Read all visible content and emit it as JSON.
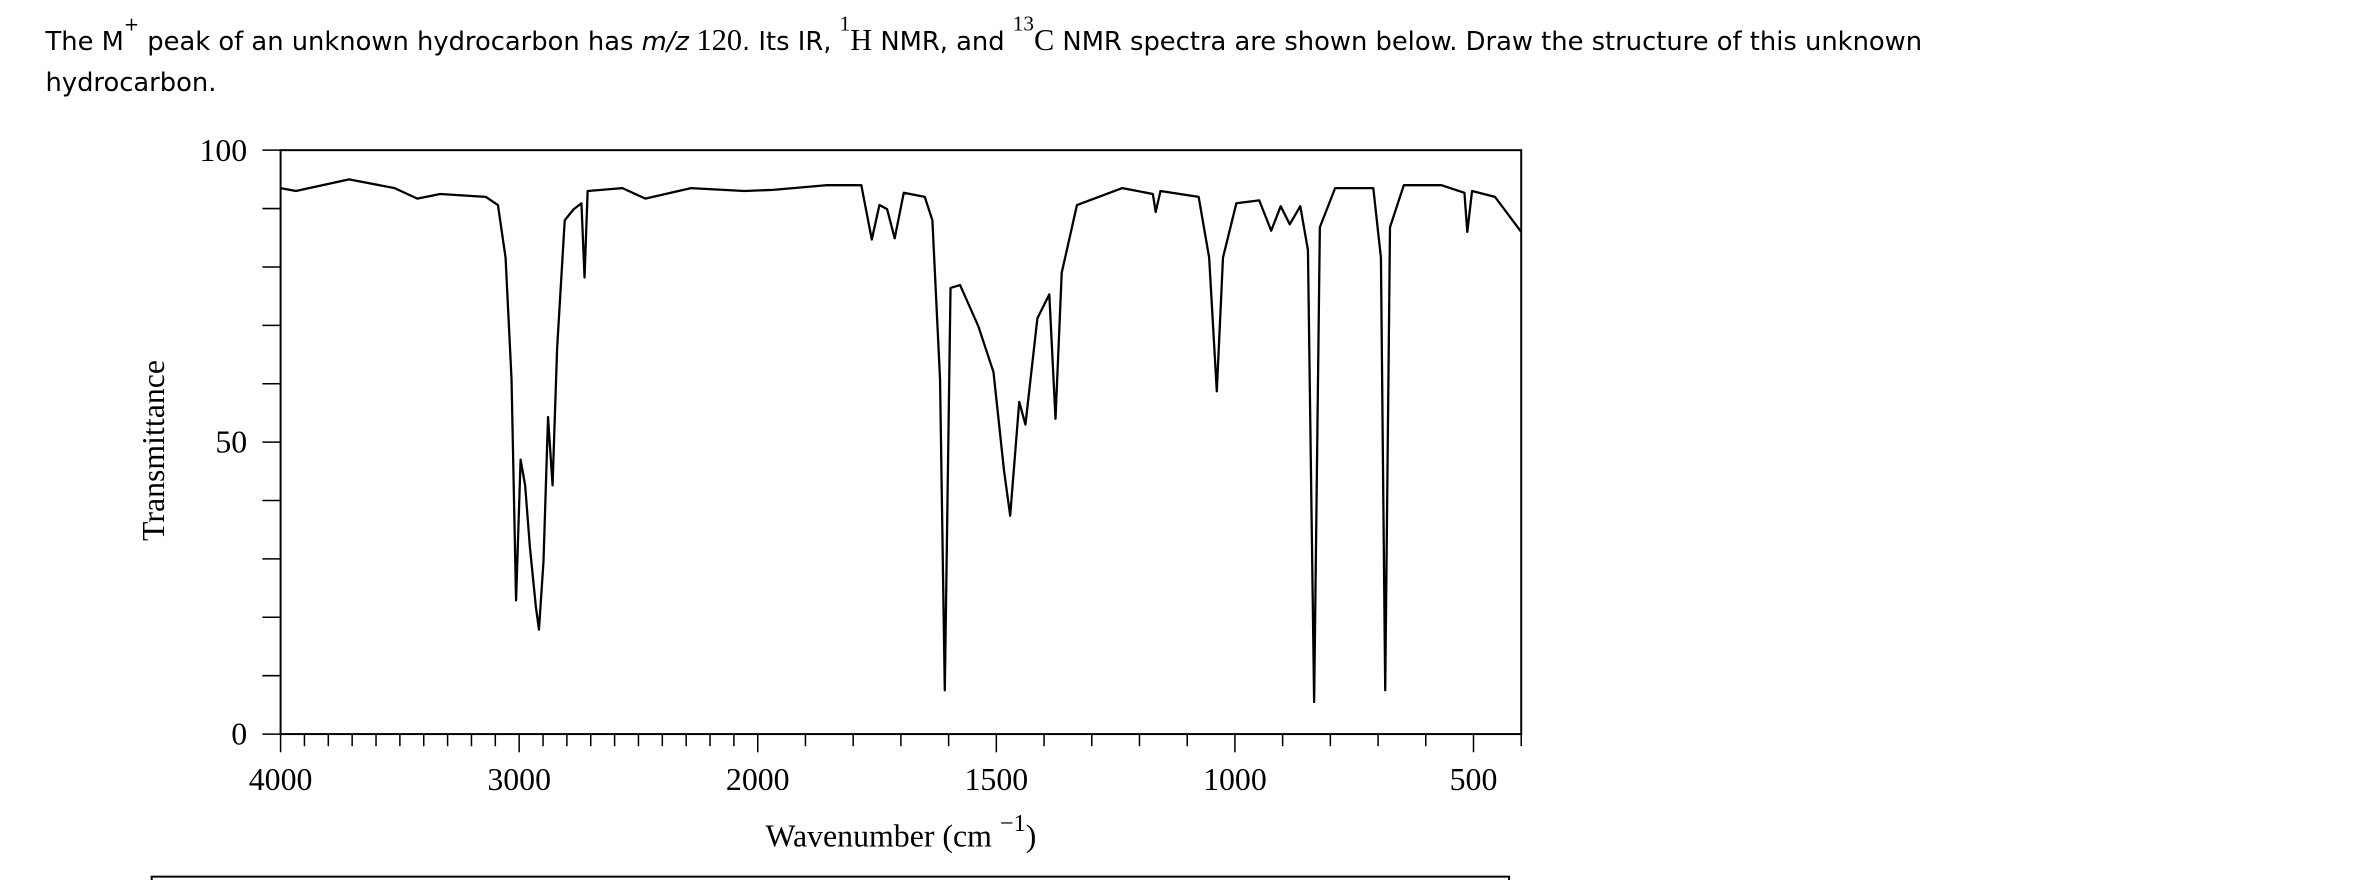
{
  "question": [
    "The M",
    "+",
    " peak of an unknown hydrocarbon has ",
    "m/z",
    " 120",
    ". Its IR, ",
    "1",
    "H",
    " NMR, and ",
    "13",
    "C",
    " NMR spectra are shown below. Draw the structure of this unknown",
    "hydrocarbon."
  ],
  "chart_data": {
    "type": "line",
    "xlabel": [
      "Wavenumber (cm ",
      "−1",
      ")"
    ],
    "ylabel": "Transmittance",
    "x": [
      4000,
      3936,
      3713,
      3522,
      3427,
      3331,
      3140,
      3089,
      3057,
      3032,
      3013,
      2994,
      2975,
      2955,
      2930,
      2917,
      2898,
      2879,
      2860,
      2841,
      2809,
      2771,
      2739,
      2726,
      2713,
      2567,
      2471,
      2280,
      2057,
      1968,
      1857,
      1783,
      1761,
      1745,
      1729,
      1713,
      1694,
      1650,
      1634,
      1618,
      1608,
      1596,
      1576,
      1538,
      1506,
      1484,
      1471,
      1452,
      1439,
      1414,
      1389,
      1376,
      1363,
      1331,
      1236,
      1172,
      1166,
      1156,
      1076,
      1054,
      1038,
      1025,
      997,
      949,
      924,
      904,
      885,
      863,
      847,
      834,
      822,
      790,
      710,
      694,
      685,
      675,
      646,
      567,
      519,
      513,
      503,
      455,
      400
    ],
    "series": [
      {
        "name": "IR",
        "color": "#000000",
        "values": [
          93.5,
          93,
          95,
          93.5,
          91.7,
          92.5,
          92,
          90.6,
          81.6,
          60.8,
          22.9,
          47,
          42.6,
          32,
          21.8,
          17.9,
          29.6,
          54.3,
          42.6,
          66,
          88,
          89.9,
          90.9,
          78.2,
          93,
          93.5,
          91.7,
          93.5,
          93,
          93.2,
          94,
          94,
          84.7,
          90.6,
          89.9,
          84.9,
          92.7,
          92,
          88,
          60.8,
          7.5,
          76.4,
          76.9,
          69.9,
          62,
          45.2,
          37.4,
          56.9,
          53,
          71.2,
          75.3,
          54,
          79,
          90.6,
          93.5,
          92.5,
          89.4,
          93,
          92,
          81.6,
          58.7,
          81.6,
          90.9,
          91.4,
          86.2,
          90.4,
          87.3,
          90.4,
          82.9,
          5.5,
          86.8,
          93.5,
          93.5,
          81.6,
          7.5,
          86.8,
          94,
          94,
          92.7,
          86,
          93,
          92,
          86
        ]
      }
    ],
    "xlim": [
      4000,
      400
    ],
    "x_break": {
      "at": 2000,
      "factor": 2
    },
    "xticks": [
      4000,
      3000,
      2000,
      1500,
      1000,
      500
    ],
    "xminorticks": [
      3900,
      3800,
      3700,
      3600,
      3500,
      3400,
      3300,
      3200,
      3100,
      2900,
      2800,
      2700,
      2600,
      2500,
      2400,
      2300,
      2200,
      2100,
      1900,
      1800,
      1700,
      1600,
      1400,
      1300,
      1200,
      1100,
      900,
      800,
      700,
      600,
      400
    ],
    "ylim": [
      0,
      100
    ],
    "yticks": [
      0,
      50,
      100
    ],
    "yminorticks": [
      10,
      20,
      30,
      40,
      60,
      70,
      80,
      90
    ],
    "grid": false
  }
}
